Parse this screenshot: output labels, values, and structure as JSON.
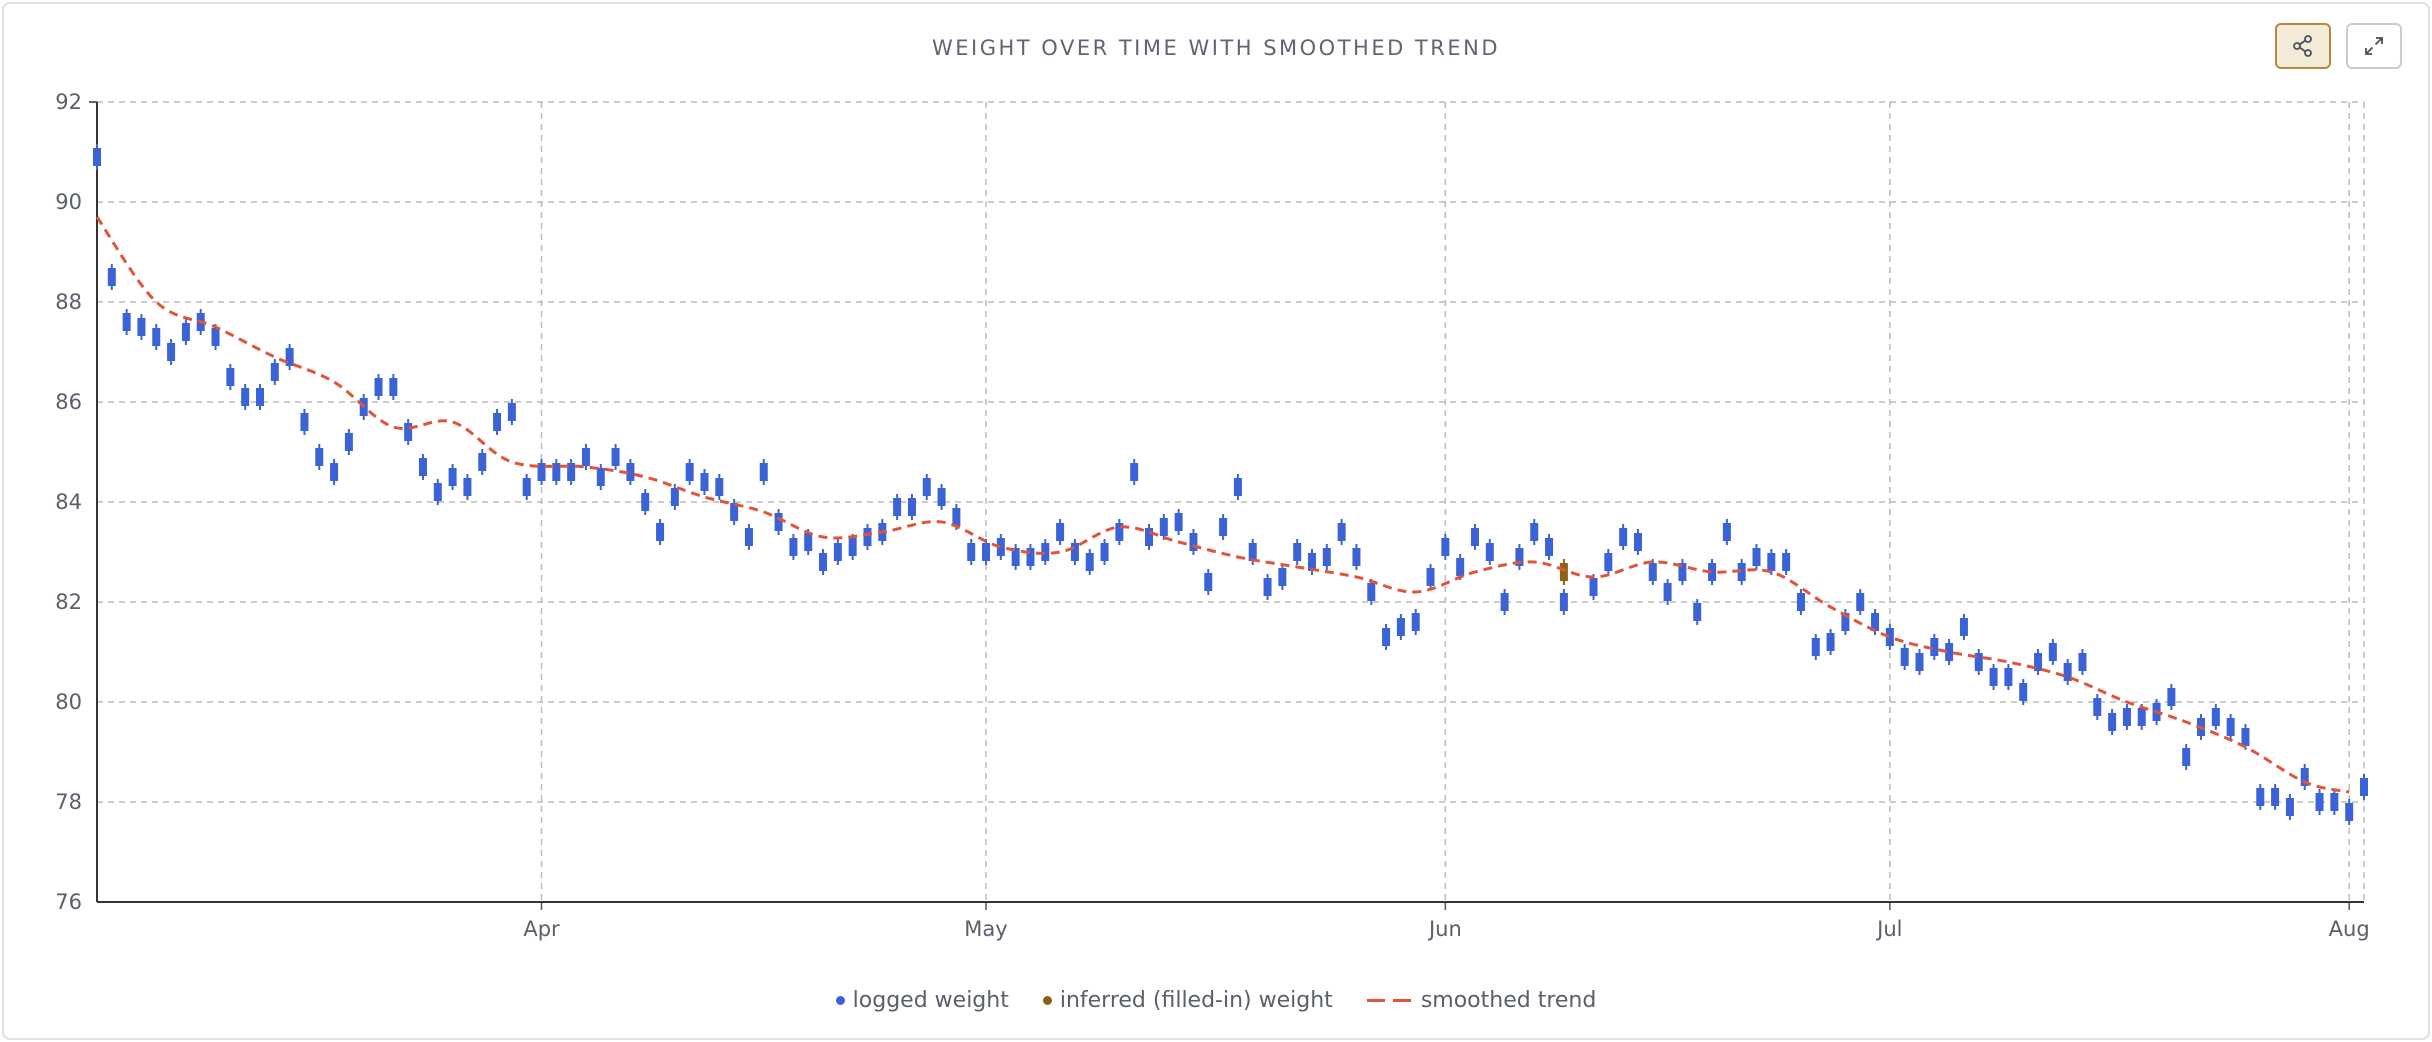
{
  "chart_data": {
    "type": "candlestick-with-line",
    "title": "WEIGHT OVER TIME WITH SMOOTHED TREND",
    "xlabel": "",
    "ylabel": "",
    "ylim": [
      76,
      92
    ],
    "yticks": [
      76,
      78,
      80,
      82,
      84,
      86,
      88,
      90,
      92
    ],
    "xticks": [
      {
        "date": "2025-04-01",
        "label": "Apr"
      },
      {
        "date": "2025-05-01",
        "label": "May"
      },
      {
        "date": "2025-06-01",
        "label": "Jun"
      },
      {
        "date": "2025-07-01",
        "label": "Jul"
      },
      {
        "date": "2025-08-01",
        "label": "Aug"
      }
    ],
    "xrange": [
      "2025-03-02",
      "2025-08-02"
    ],
    "grid": true,
    "legend_position": "bottom",
    "colors": {
      "logged": "#3b63d6",
      "inferred": "#8a6414",
      "trend": "#e0553a"
    },
    "series": [
      {
        "name": "logged weight",
        "start_date": "2025-03-02",
        "values": [
          90.9,
          88.5,
          87.6,
          87.5,
          87.3,
          87.0,
          87.4,
          87.6,
          87.3,
          86.5,
          86.1,
          86.1,
          86.6,
          86.9,
          85.6,
          84.9,
          84.6,
          85.2,
          85.9,
          86.3,
          86.3,
          85.4,
          84.7,
          84.2,
          84.5,
          84.3,
          84.8,
          85.6,
          85.8,
          84.3,
          84.6,
          84.6,
          84.6,
          84.9,
          84.5,
          84.9,
          84.6,
          84.0,
          83.4,
          84.1,
          84.6,
          84.4,
          84.3,
          83.8,
          83.3,
          84.6,
          83.6,
          83.1,
          83.2,
          82.8,
          83.0,
          83.1,
          83.3,
          83.4,
          83.9,
          83.9,
          84.3,
          84.1,
          83.7,
          83.0,
          83.0,
          83.1,
          82.9,
          82.9,
          83.0,
          83.4,
          83.0,
          82.8,
          83.0,
          83.4,
          84.6,
          83.3,
          83.5,
          83.6,
          83.2,
          82.4,
          83.5,
          84.3,
          83.0,
          82.3,
          82.5,
          83.0,
          82.8,
          82.9,
          83.4,
          82.9,
          82.2,
          81.3,
          81.5,
          81.6,
          82.5,
          83.1,
          82.7,
          83.3,
          83.0,
          82.0,
          82.9,
          83.4,
          83.1,
          82.0,
          null,
          82.3,
          82.8,
          83.3,
          83.2,
          82.6,
          82.2,
          82.6,
          81.8,
          82.6,
          83.4,
          82.6,
          82.9,
          82.8,
          82.8,
          82.0,
          81.1,
          81.2,
          81.6,
          82.0,
          81.6,
          81.3,
          80.9,
          80.8,
          81.1,
          81.0,
          81.5,
          80.8,
          80.5,
          80.5,
          80.2,
          80.8,
          81.0,
          80.6,
          80.8,
          79.9,
          79.6,
          79.7,
          79.7,
          79.8,
          80.1,
          78.9,
          79.5,
          79.7,
          79.5,
          79.3,
          78.1,
          78.1,
          77.9,
          78.5,
          78.0,
          78.0,
          77.8,
          78.3
        ]
      },
      {
        "name": "inferred (filled-in) weight",
        "points": [
          {
            "date": "2025-06-09",
            "value": 82.6
          }
        ]
      },
      {
        "name": "smoothed trend",
        "x": [
          "2025-03-02",
          "2025-03-06",
          "2025-03-10",
          "2025-03-14",
          "2025-03-18",
          "2025-03-22",
          "2025-03-26",
          "2025-03-30",
          "2025-04-04",
          "2025-04-08",
          "2025-04-12",
          "2025-04-16",
          "2025-04-20",
          "2025-04-24",
          "2025-04-28",
          "2025-05-02",
          "2025-05-06",
          "2025-05-10",
          "2025-05-14",
          "2025-05-18",
          "2025-05-22",
          "2025-05-26",
          "2025-05-30",
          "2025-06-03",
          "2025-06-07",
          "2025-06-11",
          "2025-06-15",
          "2025-06-19",
          "2025-06-23",
          "2025-06-27",
          "2025-07-01",
          "2025-07-05",
          "2025-07-09",
          "2025-07-13",
          "2025-07-17",
          "2025-07-21",
          "2025-07-25",
          "2025-07-29",
          "2025-08-01"
        ],
        "values": [
          89.7,
          88.0,
          87.5,
          86.9,
          86.4,
          85.5,
          85.6,
          84.8,
          84.7,
          84.5,
          84.1,
          83.8,
          83.3,
          83.4,
          83.6,
          83.1,
          83.0,
          83.5,
          83.2,
          82.9,
          82.7,
          82.5,
          82.2,
          82.6,
          82.8,
          82.5,
          82.8,
          82.6,
          82.6,
          81.9,
          81.3,
          81.0,
          80.8,
          80.5,
          80.0,
          79.6,
          79.1,
          78.4,
          78.2
        ]
      }
    ]
  },
  "legend": {
    "logged": "logged weight",
    "inferred": "inferred (filled-in) weight",
    "trend": "smoothed trend"
  },
  "toolbar": {
    "share_icon": "share-icon",
    "expand_icon": "expand-icon"
  }
}
